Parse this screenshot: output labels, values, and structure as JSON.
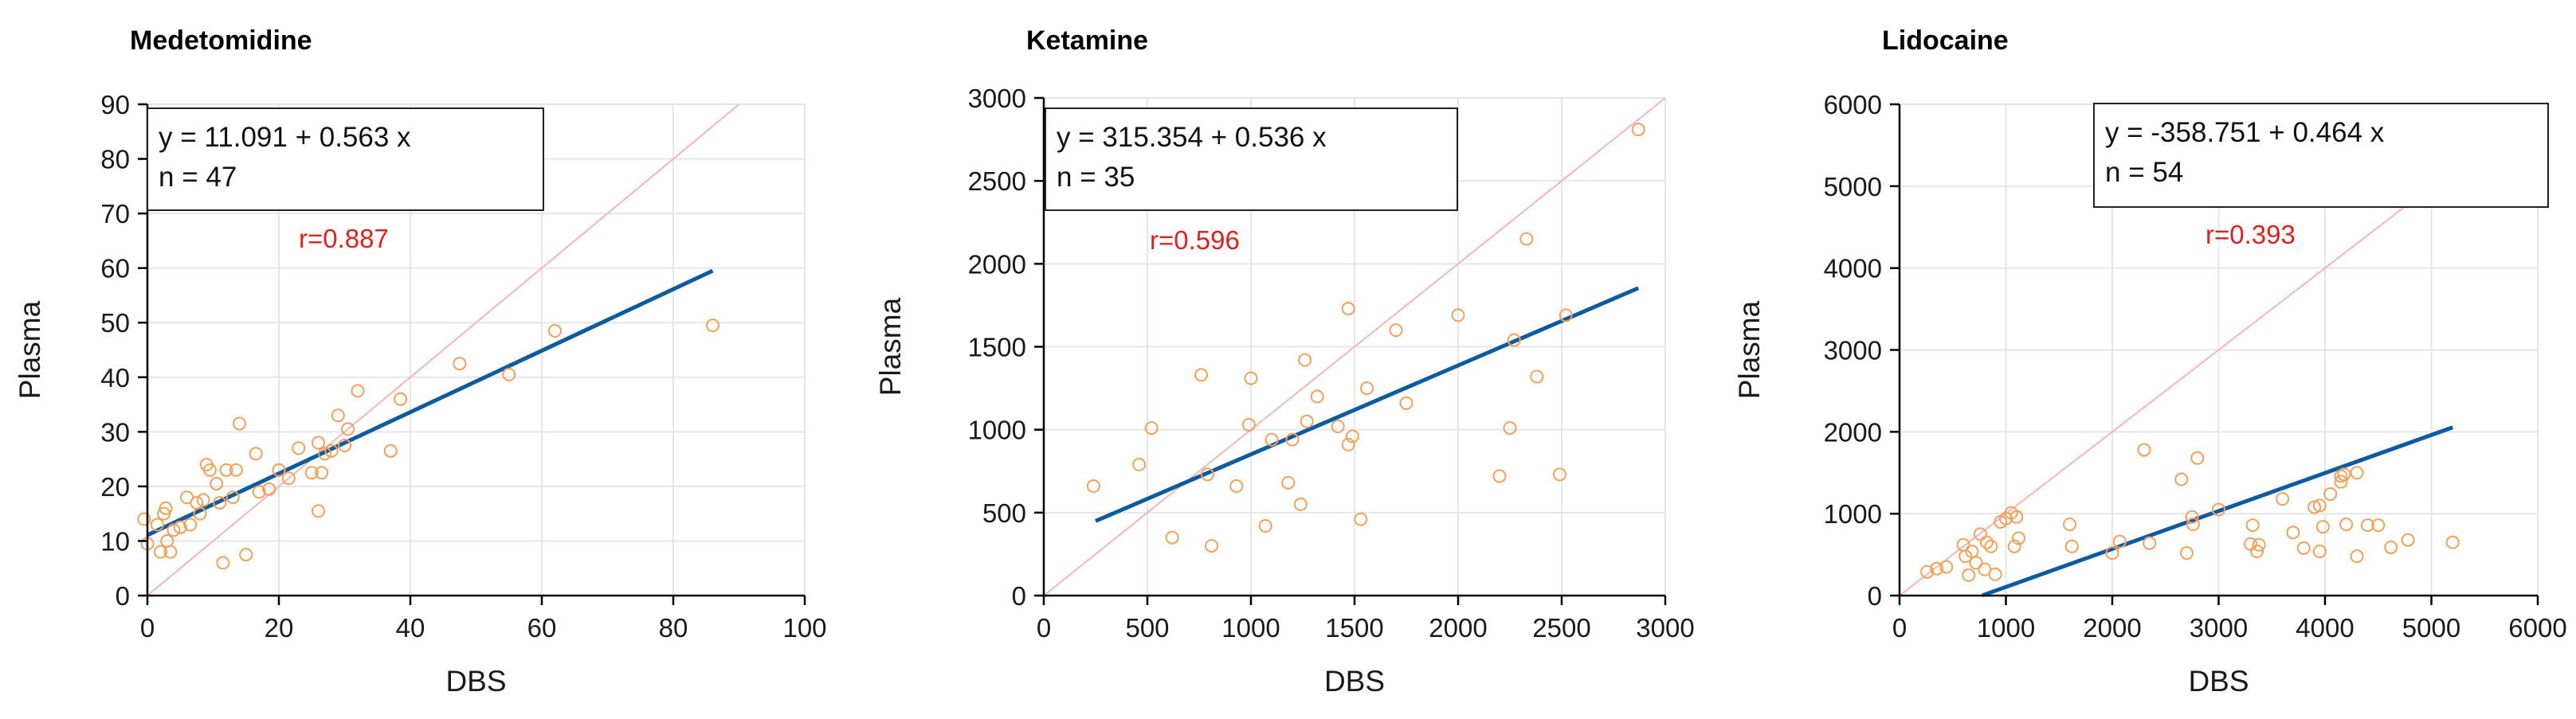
{
  "figure": {
    "panels": 3
  },
  "chart_data": [
    {
      "type": "scatter",
      "title": "Medetomidine",
      "xlabel": "DBS",
      "ylabel": "Plasma",
      "xlim": [
        0,
        100
      ],
      "ylim": [
        0,
        90
      ],
      "xticks": [
        0,
        20,
        40,
        60,
        80,
        100
      ],
      "yticks": [
        0,
        10,
        20,
        30,
        40,
        50,
        60,
        70,
        80,
        90
      ],
      "grid": true,
      "equation": "y = 11.091 + 0.563 x",
      "n_label": "n = 47",
      "r_label": "r=0.887",
      "regression": {
        "intercept": 11.091,
        "slope": 0.563,
        "x_range": [
          0,
          86
        ]
      },
      "identity_line": {
        "x_range": [
          0,
          90
        ]
      },
      "points": [
        [
          -0.5,
          14
        ],
        [
          0,
          9.5
        ],
        [
          1.5,
          13
        ],
        [
          2,
          8
        ],
        [
          2.5,
          15
        ],
        [
          2.8,
          16
        ],
        [
          3,
          10
        ],
        [
          3.5,
          8
        ],
        [
          4,
          12
        ],
        [
          5,
          12.5
        ],
        [
          6,
          18
        ],
        [
          6.5,
          13
        ],
        [
          7.5,
          17
        ],
        [
          8,
          15
        ],
        [
          9,
          24
        ],
        [
          9.5,
          23
        ],
        [
          11,
          17
        ],
        [
          11.5,
          6
        ],
        [
          12,
          23
        ],
        [
          13,
          18
        ],
        [
          13.5,
          23
        ],
        [
          14,
          31.5
        ],
        [
          15,
          7.5
        ],
        [
          16.5,
          26
        ],
        [
          17,
          19
        ],
        [
          20,
          23
        ],
        [
          23,
          27
        ],
        [
          25,
          22.5
        ],
        [
          26,
          15.5
        ],
        [
          26,
          28
        ],
        [
          26.5,
          22.5
        ],
        [
          27,
          26
        ],
        [
          28,
          26.5
        ],
        [
          29,
          33
        ],
        [
          30,
          27.5
        ],
        [
          30.5,
          30.5
        ],
        [
          32,
          37.5
        ],
        [
          37,
          26.5
        ],
        [
          38.5,
          36
        ],
        [
          47.5,
          42.5
        ],
        [
          55,
          40.5
        ],
        [
          62,
          48.5
        ],
        [
          86,
          49.5
        ],
        [
          8.5,
          17.5
        ],
        [
          10.5,
          20.5
        ],
        [
          21.5,
          21.5
        ],
        [
          18.5,
          19.5
        ]
      ]
    },
    {
      "type": "scatter",
      "title": "Ketamine",
      "xlabel": "DBS",
      "ylabel": "Plasma",
      "xlim": [
        0,
        3000
      ],
      "ylim": [
        0,
        3000
      ],
      "xticks": [
        0,
        500,
        1000,
        1500,
        2000,
        2500,
        3000
      ],
      "yticks": [
        0,
        500,
        1000,
        1500,
        2000,
        2500,
        3000
      ],
      "grid": true,
      "equation": "y = 315.354 + 0.536 x",
      "n_label": "n = 35",
      "r_label": "r=0.596",
      "regression": {
        "intercept": 315.354,
        "slope": 0.536,
        "x_range": [
          250,
          2870
        ]
      },
      "identity_line": {
        "x_range": [
          0,
          3000
        ]
      },
      "points": [
        [
          240,
          660
        ],
        [
          460,
          790
        ],
        [
          520,
          1010
        ],
        [
          620,
          350
        ],
        [
          760,
          1330
        ],
        [
          790,
          730
        ],
        [
          810,
          300
        ],
        [
          930,
          660
        ],
        [
          990,
          1030
        ],
        [
          1000,
          1310
        ],
        [
          1070,
          420
        ],
        [
          1100,
          940
        ],
        [
          1180,
          680
        ],
        [
          1200,
          940
        ],
        [
          1240,
          550
        ],
        [
          1260,
          1420
        ],
        [
          1270,
          1050
        ],
        [
          1320,
          1200
        ],
        [
          1420,
          1020
        ],
        [
          1470,
          1730
        ],
        [
          1470,
          910
        ],
        [
          1490,
          960
        ],
        [
          1530,
          460
        ],
        [
          1560,
          1250
        ],
        [
          1700,
          1600
        ],
        [
          1750,
          1160
        ],
        [
          2000,
          1690
        ],
        [
          2200,
          720
        ],
        [
          2250,
          1010
        ],
        [
          2330,
          2150
        ],
        [
          2380,
          1320
        ],
        [
          2490,
          730
        ],
        [
          2520,
          1690
        ],
        [
          2870,
          2810
        ],
        [
          2270,
          1540
        ]
      ]
    },
    {
      "type": "scatter",
      "title": "Lidocaine",
      "xlabel": "DBS",
      "ylabel": "Plasma",
      "xlim": [
        0,
        6000
      ],
      "ylim": [
        0,
        6000
      ],
      "xticks": [
        0,
        1000,
        2000,
        3000,
        4000,
        5000,
        6000
      ],
      "yticks": [
        0,
        1000,
        2000,
        3000,
        4000,
        5000,
        6000
      ],
      "grid": true,
      "equation": "y = -358.751 + 0.464 x",
      "n_label": "n = 54",
      "r_label": "r=0.393",
      "regression": {
        "intercept": -358.751,
        "slope": 0.464,
        "x_range": [
          780,
          5200
        ]
      },
      "identity_line": {
        "x_range": [
          0,
          6000
        ]
      },
      "points": [
        [
          260,
          290
        ],
        [
          350,
          330
        ],
        [
          440,
          350
        ],
        [
          600,
          620
        ],
        [
          620,
          480
        ],
        [
          650,
          250
        ],
        [
          680,
          540
        ],
        [
          720,
          400
        ],
        [
          760,
          750
        ],
        [
          800,
          320
        ],
        [
          820,
          650
        ],
        [
          860,
          600
        ],
        [
          900,
          260
        ],
        [
          950,
          900
        ],
        [
          1000,
          940
        ],
        [
          1050,
          1010
        ],
        [
          1080,
          600
        ],
        [
          1100,
          960
        ],
        [
          1120,
          700
        ],
        [
          1600,
          870
        ],
        [
          1620,
          600
        ],
        [
          2000,
          520
        ],
        [
          2070,
          660
        ],
        [
          2300,
          1780
        ],
        [
          2350,
          640
        ],
        [
          2650,
          1420
        ],
        [
          2700,
          520
        ],
        [
          2750,
          960
        ],
        [
          2760,
          870
        ],
        [
          2800,
          1680
        ],
        [
          3300,
          630
        ],
        [
          3320,
          860
        ],
        [
          3360,
          540
        ],
        [
          3380,
          620
        ],
        [
          3600,
          1180
        ],
        [
          3700,
          770
        ],
        [
          3800,
          580
        ],
        [
          3900,
          1080
        ],
        [
          3950,
          540
        ],
        [
          3980,
          840
        ],
        [
          4050,
          1240
        ],
        [
          4150,
          1390
        ],
        [
          4180,
          1480
        ],
        [
          4200,
          870
        ],
        [
          4300,
          480
        ],
        [
          4300,
          1500
        ],
        [
          4400,
          860
        ],
        [
          4500,
          860
        ],
        [
          4620,
          590
        ],
        [
          4780,
          680
        ],
        [
          5200,
          650
        ],
        [
          3950,
          1100
        ],
        [
          4150,
          1460
        ],
        [
          3000,
          1050
        ]
      ]
    }
  ]
}
